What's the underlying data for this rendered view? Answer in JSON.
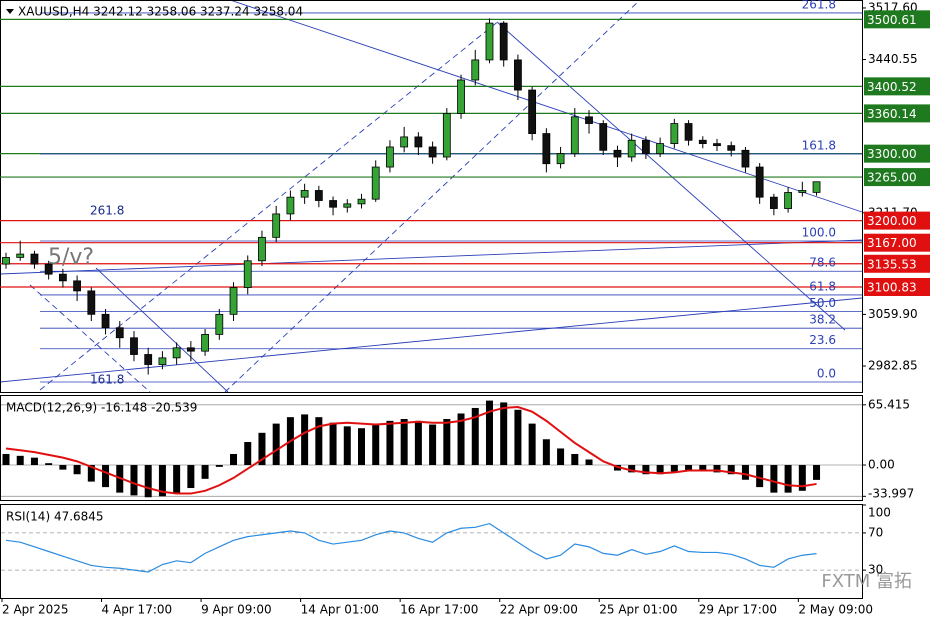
{
  "chart_data": [
    {
      "type": "candlestick",
      "title": "XAUUSD,H4  3242.12 3258.06 3237.24 3258.04",
      "categories": [
        "2 Apr 2025",
        null,
        null,
        null,
        null,
        null,
        null,
        "4 Apr 17:00",
        null,
        null,
        null,
        null,
        null,
        null,
        "9 Apr 09:00",
        null,
        null,
        null,
        null,
        null,
        null,
        "14 Apr 01:00",
        null,
        null,
        null,
        null,
        null,
        null,
        "16 Apr 17:00",
        null,
        null,
        null,
        null,
        null,
        null,
        "22 Apr 09:00",
        null,
        null,
        null,
        null,
        null,
        null,
        "25 Apr 01:00",
        null,
        null,
        null,
        null,
        null,
        null,
        "29 Apr 17:00",
        null,
        null,
        null,
        null,
        null,
        null,
        "2 May 09:00",
        null
      ],
      "open": [
        3135,
        3145,
        3150,
        3135,
        3120,
        3110,
        3095,
        3060,
        3040,
        3025,
        3000,
        2985,
        2995,
        3010,
        3005,
        3030,
        3060,
        3100,
        3140,
        3175,
        3210,
        3235,
        3245,
        3230,
        3220,
        3225,
        3232,
        3280,
        3310,
        3325,
        3310,
        3295,
        3360,
        3410,
        3440,
        3495,
        3440,
        3395,
        3330,
        3285,
        3300,
        3355,
        3345,
        3305,
        3295,
        3320,
        3300,
        3315,
        3345,
        3320,
        3315,
        3312,
        3305,
        3280,
        3235,
        3218,
        3242,
        3242.12
      ],
      "high": [
        3152,
        3170,
        3155,
        3140,
        3128,
        3118,
        3100,
        3068,
        3050,
        3035,
        3010,
        3005,
        3018,
        3020,
        3038,
        3068,
        3108,
        3148,
        3185,
        3222,
        3245,
        3255,
        3252,
        3236,
        3232,
        3240,
        3290,
        3320,
        3340,
        3332,
        3318,
        3368,
        3418,
        3455,
        3502,
        3498,
        3448,
        3400,
        3338,
        3310,
        3368,
        3365,
        3350,
        3312,
        3330,
        3326,
        3324,
        3352,
        3350,
        3326,
        3322,
        3318,
        3310,
        3286,
        3240,
        3250,
        3258,
        3258.06
      ],
      "low": [
        3128,
        3140,
        3128,
        3112,
        3100,
        3080,
        3050,
        3030,
        3010,
        2990,
        2970,
        2978,
        2985,
        2990,
        2998,
        3022,
        3050,
        3090,
        3132,
        3168,
        3200,
        3225,
        3220,
        3208,
        3212,
        3218,
        3228,
        3272,
        3302,
        3298,
        3285,
        3290,
        3352,
        3402,
        3435,
        3430,
        3380,
        3320,
        3272,
        3278,
        3295,
        3330,
        3298,
        3280,
        3288,
        3292,
        3295,
        3308,
        3312,
        3308,
        3304,
        3296,
        3272,
        3225,
        3208,
        3212,
        3236,
        3237.24
      ],
      "close": [
        3145,
        3150,
        3135,
        3120,
        3110,
        3095,
        3060,
        3040,
        3025,
        3000,
        2985,
        2995,
        3010,
        3005,
        3030,
        3060,
        3100,
        3140,
        3175,
        3210,
        3235,
        3245,
        3230,
        3220,
        3225,
        3232,
        3280,
        3310,
        3325,
        3310,
        3295,
        3360,
        3410,
        3440,
        3495,
        3440,
        3395,
        3330,
        3285,
        3300,
        3355,
        3345,
        3305,
        3295,
        3320,
        3300,
        3315,
        3345,
        3320,
        3315,
        3312,
        3305,
        3280,
        3235,
        3218,
        3242,
        3245,
        3258.04
      ],
      "up_color": "#35a335",
      "down_color": "#111111",
      "ylim": [
        2944,
        3529.5
      ],
      "yticks": [
        {
          "value": 3517.6,
          "label": "3517.60"
        },
        {
          "value": 3440.55,
          "label": "3440.55"
        },
        {
          "value": 3211.7,
          "label": "3211.70"
        },
        {
          "value": 3059.9,
          "label": "3059.90"
        },
        {
          "value": 2982.85,
          "label": "2982.85"
        }
      ],
      "grid": false,
      "levels": [
        {
          "value": 3500.61,
          "label": "3500.61",
          "color": "#1f7a1f"
        },
        {
          "value": 3400.52,
          "label": "3400.52",
          "color": "#1f7a1f"
        },
        {
          "value": 3360.14,
          "label": "3360.14",
          "color": "#1f7a1f"
        },
        {
          "value": 3300,
          "label": "3300.00",
          "color": "#1f7a1f"
        },
        {
          "value": 3265,
          "label": "3265.00",
          "color": "#1f7a1f"
        },
        {
          "value": 3200,
          "label": "3200.00",
          "color": "#e01010"
        },
        {
          "value": 3167,
          "label": "3167.00",
          "color": "#e01010"
        },
        {
          "value": 3135.53,
          "label": "3135.53",
          "color": "#e01010"
        },
        {
          "value": 3100.83,
          "label": "3100.83",
          "color": "#e01010"
        }
      ],
      "fibonacci": {
        "levels": [
          "261.8",
          "161.8",
          "100.0",
          "78.6",
          "61.8",
          "50.0",
          "38.2",
          "23.6",
          "0.0"
        ],
        "prices": [
          3510.2,
          3299.6,
          3169.5,
          3124.4,
          3089.0,
          3064.2,
          3039.3,
          3008.6,
          2958.9
        ],
        "color": "#2b3fb8"
      },
      "annotations": [
        "5/v?",
        "261.8",
        "161.8"
      ]
    },
    {
      "type": "bar",
      "title": "MACD(12,26,9) -16.148 -20.539",
      "series": [
        {
          "type": "bar",
          "color": "#000000",
          "values": [
            12,
            10,
            8,
            2,
            -5,
            -10,
            -18,
            -24,
            -30,
            -33,
            -35,
            -34,
            -30,
            -25,
            -15,
            -2,
            12,
            25,
            35,
            45,
            52,
            55,
            52,
            46,
            42,
            40,
            44,
            48,
            50,
            48,
            44,
            50,
            56,
            62,
            70,
            68,
            60,
            45,
            28,
            18,
            12,
            6,
            0,
            -6,
            -8,
            -10,
            -10,
            -7,
            -6,
            -6,
            -8,
            -10,
            -16,
            -24,
            -30,
            -30,
            -28,
            -16.148
          ]
        },
        {
          "type": "line",
          "color": "#e01010",
          "values": [
            18,
            16,
            14,
            11,
            8,
            4,
            -2,
            -8,
            -14,
            -20,
            -25,
            -29,
            -31,
            -31,
            -28,
            -22,
            -14,
            -4,
            6,
            16,
            26,
            35,
            42,
            45,
            46,
            45,
            44,
            45,
            46,
            47,
            46,
            46,
            48,
            52,
            58,
            62,
            63,
            58,
            48,
            36,
            24,
            14,
            4,
            -2,
            -6,
            -8,
            -9,
            -8,
            -6,
            -6,
            -6,
            -8,
            -10,
            -14,
            -18,
            -22,
            -23,
            -20.539
          ]
        }
      ],
      "ylim": [
        -38,
        75
      ],
      "yticks": [
        65.415,
        {
          "value": 0,
          "label": "0.00"
        },
        -33.997
      ],
      "grid": true
    },
    {
      "type": "line",
      "title": "RSI(14) 47.6845",
      "values": [
        62,
        60,
        55,
        50,
        45,
        40,
        35,
        33,
        32,
        30,
        28,
        36,
        40,
        38,
        48,
        55,
        62,
        66,
        68,
        70,
        72,
        70,
        62,
        58,
        60,
        62,
        68,
        72,
        70,
        64,
        60,
        70,
        75,
        76,
        80,
        70,
        60,
        50,
        42,
        46,
        58,
        55,
        48,
        46,
        52,
        47,
        50,
        56,
        50,
        49,
        49,
        47,
        42,
        35,
        33,
        42,
        46,
        47.6845
      ],
      "color": "#2a8be0",
      "ylim": [
        0,
        100
      ],
      "yticks": [
        100,
        70,
        30
      ],
      "grid": true
    }
  ],
  "watermark": "FXTM 富拓"
}
